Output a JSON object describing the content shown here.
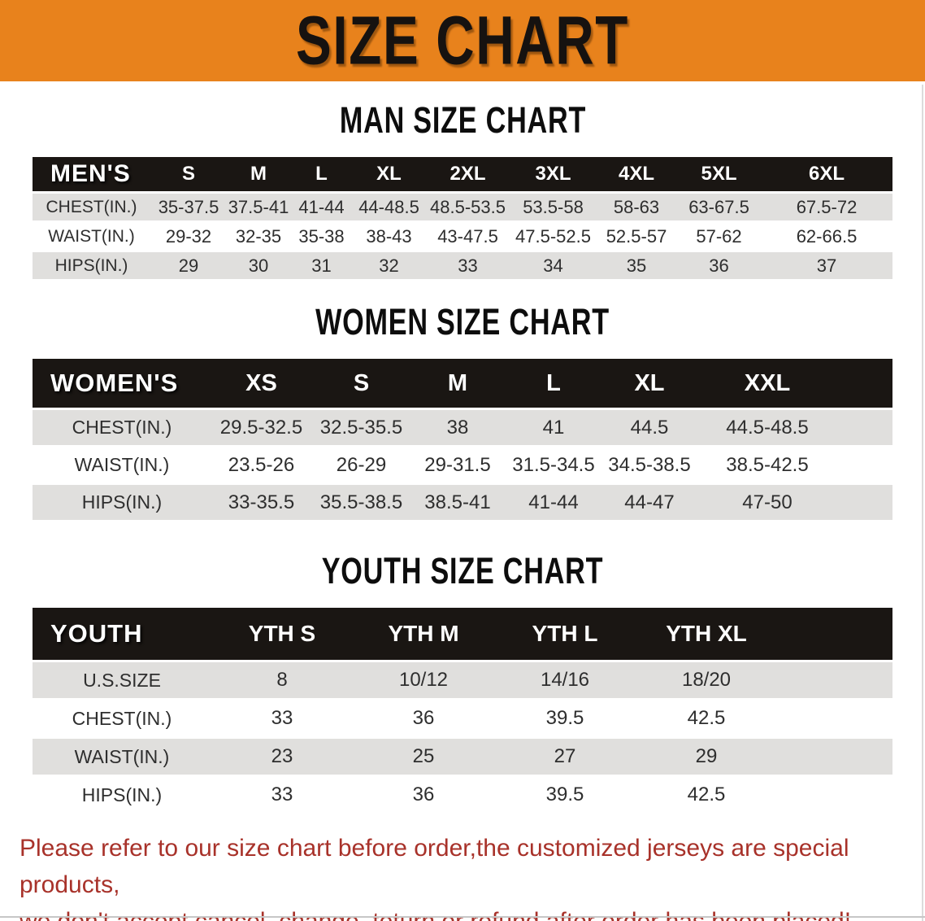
{
  "banner": {
    "title": "SIZE CHART",
    "bg_color": "#E8821C"
  },
  "colors": {
    "header_bar_bg": "#1A1613",
    "row_alt_bg": "#E0DFDD",
    "disclaimer_red": "#A8322A"
  },
  "sections": [
    {
      "id": "men",
      "heading": "MAN SIZE CHART",
      "corner_label": "MEN'S",
      "columns": [
        "S",
        "M",
        "L",
        "XL",
        "2XL",
        "3XL",
        "4XL",
        "5XL",
        "6XL"
      ],
      "rows": [
        {
          "label": "CHEST(IN.)",
          "values": [
            "35-37.5",
            "37.5-41",
            "41-44",
            "44-48.5",
            "48.5-53.5",
            "53.5-58",
            "58-63",
            "63-67.5",
            "67.5-72"
          ]
        },
        {
          "label": "WAIST(IN.)",
          "values": [
            "29-32",
            "32-35",
            "35-38",
            "38-43",
            "43-47.5",
            "47.5-52.5",
            "52.5-57",
            "57-62",
            "62-66.5"
          ]
        },
        {
          "label": "HIPS(IN.)",
          "values": [
            "29",
            "30",
            "31",
            "32",
            "33",
            "34",
            "35",
            "36",
            "37"
          ]
        }
      ]
    },
    {
      "id": "women",
      "heading": "WOMEN SIZE CHART",
      "corner_label": "WOMEN'S",
      "columns": [
        "XS",
        "S",
        "M",
        "L",
        "XL",
        "XXL"
      ],
      "rows": [
        {
          "label": "CHEST(IN.)",
          "values": [
            "29.5-32.5",
            "32.5-35.5",
            "38",
            "41",
            "44.5",
            "44.5-48.5"
          ]
        },
        {
          "label": "WAIST(IN.)",
          "values": [
            "23.5-26",
            "26-29",
            "29-31.5",
            "31.5-34.5",
            "34.5-38.5",
            "38.5-42.5"
          ]
        },
        {
          "label": "HIPS(IN.)",
          "values": [
            "33-35.5",
            "35.5-38.5",
            "38.5-41",
            "41-44",
            "44-47",
            "47-50"
          ]
        }
      ]
    },
    {
      "id": "youth",
      "heading": "YOUTH SIZE CHART",
      "corner_label": "YOUTH",
      "columns": [
        "YTH S",
        "YTH M",
        "YTH L",
        "YTH XL"
      ],
      "rows": [
        {
          "label": "U.S.SIZE",
          "values": [
            "8",
            "10/12",
            "14/16",
            "18/20"
          ]
        },
        {
          "label": "CHEST(IN.)",
          "values": [
            "33",
            "36",
            "39.5",
            "42.5"
          ]
        },
        {
          "label": "WAIST(IN.)",
          "values": [
            "23",
            "25",
            "27",
            "29"
          ]
        },
        {
          "label": "HIPS(IN.)",
          "values": [
            "33",
            "36",
            "39.5",
            "42.5"
          ]
        }
      ]
    }
  ],
  "disclaimer": {
    "lines": [
      "Please refer to our size chart before order,the customized jerseys are special products,",
      "we don't accept cancel, change, teturn or refund after order has been placed!"
    ]
  }
}
